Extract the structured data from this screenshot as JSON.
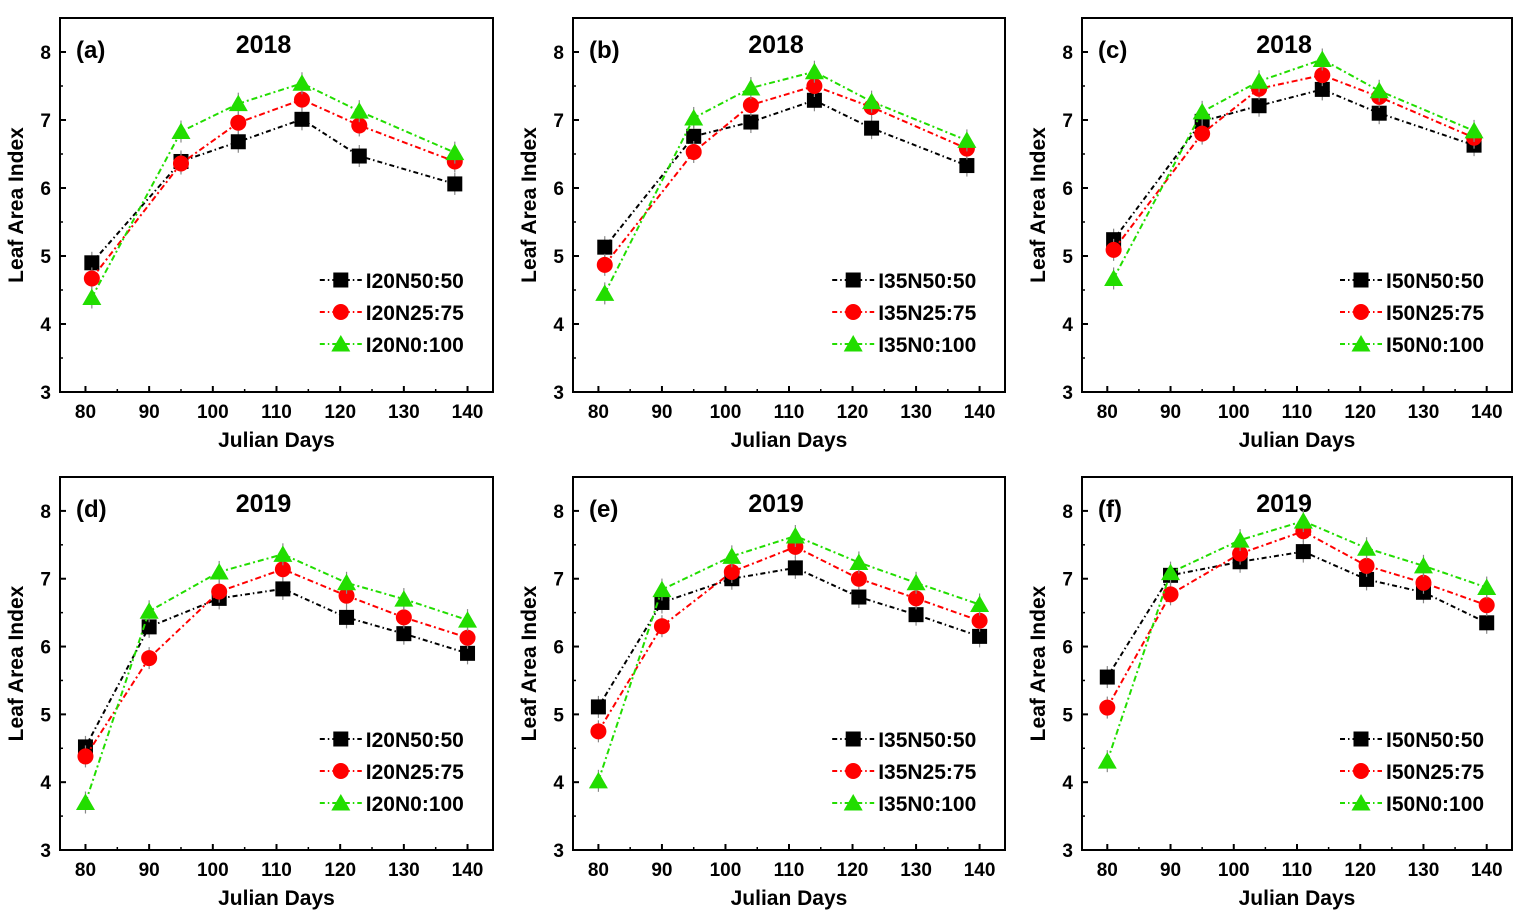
{
  "chart_data": [
    {
      "type": "line",
      "panel": "(a)",
      "title": "2018",
      "xlabel": "Julian Days",
      "ylabel": "Leaf Area Index",
      "xlim": [
        76,
        144
      ],
      "ylim": [
        3,
        8.5
      ],
      "xticks": [
        80,
        90,
        100,
        110,
        120,
        130,
        140
      ],
      "yticks": [
        3,
        4,
        5,
        6,
        7,
        8
      ],
      "x": [
        81,
        95,
        104,
        114,
        123,
        138
      ],
      "legend_position": "bottom-right",
      "series": [
        {
          "name": "I20N50:50",
          "marker": "square",
          "color": "#000000",
          "values": [
            4.9,
            6.39,
            6.68,
            7.01,
            6.47,
            6.06
          ]
        },
        {
          "name": "I20N25:75",
          "marker": "circle",
          "color": "#ff0000",
          "values": [
            4.67,
            6.36,
            6.96,
            7.3,
            6.92,
            6.39
          ]
        },
        {
          "name": "I20N0:100",
          "marker": "triangle",
          "color": "#22dd00",
          "values": [
            4.39,
            6.83,
            7.24,
            7.54,
            7.13,
            6.52
          ]
        }
      ]
    },
    {
      "type": "line",
      "panel": "(b)",
      "title": "2018",
      "xlabel": "Julian Days",
      "ylabel": "Leaf Area Index",
      "xlim": [
        76,
        144
      ],
      "ylim": [
        3,
        8.5
      ],
      "xticks": [
        80,
        90,
        100,
        110,
        120,
        130,
        140
      ],
      "yticks": [
        3,
        4,
        5,
        6,
        7,
        8
      ],
      "x": [
        81,
        95,
        104,
        114,
        123,
        138
      ],
      "legend_position": "bottom-right",
      "series": [
        {
          "name": "I35N50:50",
          "marker": "square",
          "color": "#000000",
          "values": [
            5.13,
            6.76,
            6.97,
            7.29,
            6.88,
            6.33
          ]
        },
        {
          "name": "I35N25:75",
          "marker": "circle",
          "color": "#ff0000",
          "values": [
            4.87,
            6.53,
            7.22,
            7.5,
            7.19,
            6.58
          ]
        },
        {
          "name": "I35N0:100",
          "marker": "triangle",
          "color": "#22dd00",
          "values": [
            4.45,
            7.03,
            7.47,
            7.71,
            7.27,
            6.7
          ]
        }
      ]
    },
    {
      "type": "line",
      "panel": "(c)",
      "title": "2018",
      "xlabel": "Julian Days",
      "ylabel": "Leaf Area Index",
      "xlim": [
        76,
        144
      ],
      "ylim": [
        3,
        8.5
      ],
      "xticks": [
        80,
        90,
        100,
        110,
        120,
        130,
        140
      ],
      "yticks": [
        3,
        4,
        5,
        6,
        7,
        8
      ],
      "x": [
        81,
        95,
        104,
        114,
        123,
        138
      ],
      "legend_position": "bottom-right",
      "series": [
        {
          "name": "I50N50:50",
          "marker": "square",
          "color": "#000000",
          "values": [
            5.24,
            6.98,
            7.21,
            7.45,
            7.1,
            6.63
          ]
        },
        {
          "name": "I50N25:75",
          "marker": "circle",
          "color": "#ff0000",
          "values": [
            5.09,
            6.8,
            7.46,
            7.66,
            7.34,
            6.74
          ]
        },
        {
          "name": "I50N0:100",
          "marker": "triangle",
          "color": "#22dd00",
          "values": [
            4.67,
            7.12,
            7.57,
            7.89,
            7.43,
            6.84
          ]
        }
      ]
    },
    {
      "type": "line",
      "panel": "(d)",
      "title": "2019",
      "xlabel": "Julian Days",
      "ylabel": "Leaf Area Index",
      "xlim": [
        76,
        144
      ],
      "ylim": [
        3,
        8.5
      ],
      "xticks": [
        80,
        90,
        100,
        110,
        120,
        130,
        140
      ],
      "yticks": [
        3,
        4,
        5,
        6,
        7,
        8
      ],
      "x": [
        80,
        90,
        101,
        111,
        121,
        130,
        140
      ],
      "legend_position": "bottom-right",
      "series": [
        {
          "name": "I20N50:50",
          "marker": "square",
          "color": "#000000",
          "values": [
            4.52,
            6.29,
            6.71,
            6.85,
            6.43,
            6.19,
            5.9
          ]
        },
        {
          "name": "I20N25:75",
          "marker": "circle",
          "color": "#ff0000",
          "values": [
            4.38,
            5.83,
            6.81,
            7.14,
            6.75,
            6.43,
            6.13
          ]
        },
        {
          "name": "I20N0:100",
          "marker": "triangle",
          "color": "#22dd00",
          "values": [
            3.7,
            6.52,
            7.1,
            7.36,
            6.94,
            6.7,
            6.39
          ]
        }
      ]
    },
    {
      "type": "line",
      "panel": "(e)",
      "title": "2019",
      "xlabel": "Julian Days",
      "ylabel": "Leaf Area Index",
      "xlim": [
        76,
        144
      ],
      "ylim": [
        3,
        8.5
      ],
      "xticks": [
        80,
        90,
        100,
        110,
        120,
        130,
        140
      ],
      "yticks": [
        3,
        4,
        5,
        6,
        7,
        8
      ],
      "x": [
        80,
        90,
        101,
        111,
        121,
        130,
        140
      ],
      "legend_position": "bottom-right",
      "series": [
        {
          "name": "I35N50:50",
          "marker": "square",
          "color": "#000000",
          "values": [
            5.11,
            6.65,
            7.0,
            7.16,
            6.73,
            6.47,
            6.15
          ]
        },
        {
          "name": "I35N25:75",
          "marker": "circle",
          "color": "#ff0000",
          "values": [
            4.75,
            6.3,
            7.1,
            7.47,
            7.0,
            6.71,
            6.38
          ]
        },
        {
          "name": "I35N0:100",
          "marker": "triangle",
          "color": "#22dd00",
          "values": [
            4.02,
            6.84,
            7.33,
            7.63,
            7.24,
            6.94,
            6.62
          ]
        }
      ]
    },
    {
      "type": "line",
      "panel": "(f)",
      "title": "2019",
      "xlabel": "Julian Days",
      "ylabel": "Leaf Area Index",
      "xlim": [
        76,
        144
      ],
      "ylim": [
        3,
        8.5
      ],
      "xticks": [
        80,
        90,
        100,
        110,
        120,
        130,
        140
      ],
      "yticks": [
        3,
        4,
        5,
        6,
        7,
        8
      ],
      "x": [
        80,
        90,
        101,
        111,
        121,
        130,
        140
      ],
      "legend_position": "bottom-right",
      "series": [
        {
          "name": "I50N50:50",
          "marker": "square",
          "color": "#000000",
          "values": [
            5.55,
            7.05,
            7.25,
            7.4,
            6.99,
            6.8,
            6.35
          ]
        },
        {
          "name": "I50N25:75",
          "marker": "circle",
          "color": "#ff0000",
          "values": [
            5.1,
            6.77,
            7.37,
            7.7,
            7.19,
            6.94,
            6.61
          ]
        },
        {
          "name": "I50N0:100",
          "marker": "triangle",
          "color": "#22dd00",
          "values": [
            4.31,
            7.09,
            7.57,
            7.85,
            7.45,
            7.19,
            6.87
          ]
        }
      ]
    }
  ]
}
